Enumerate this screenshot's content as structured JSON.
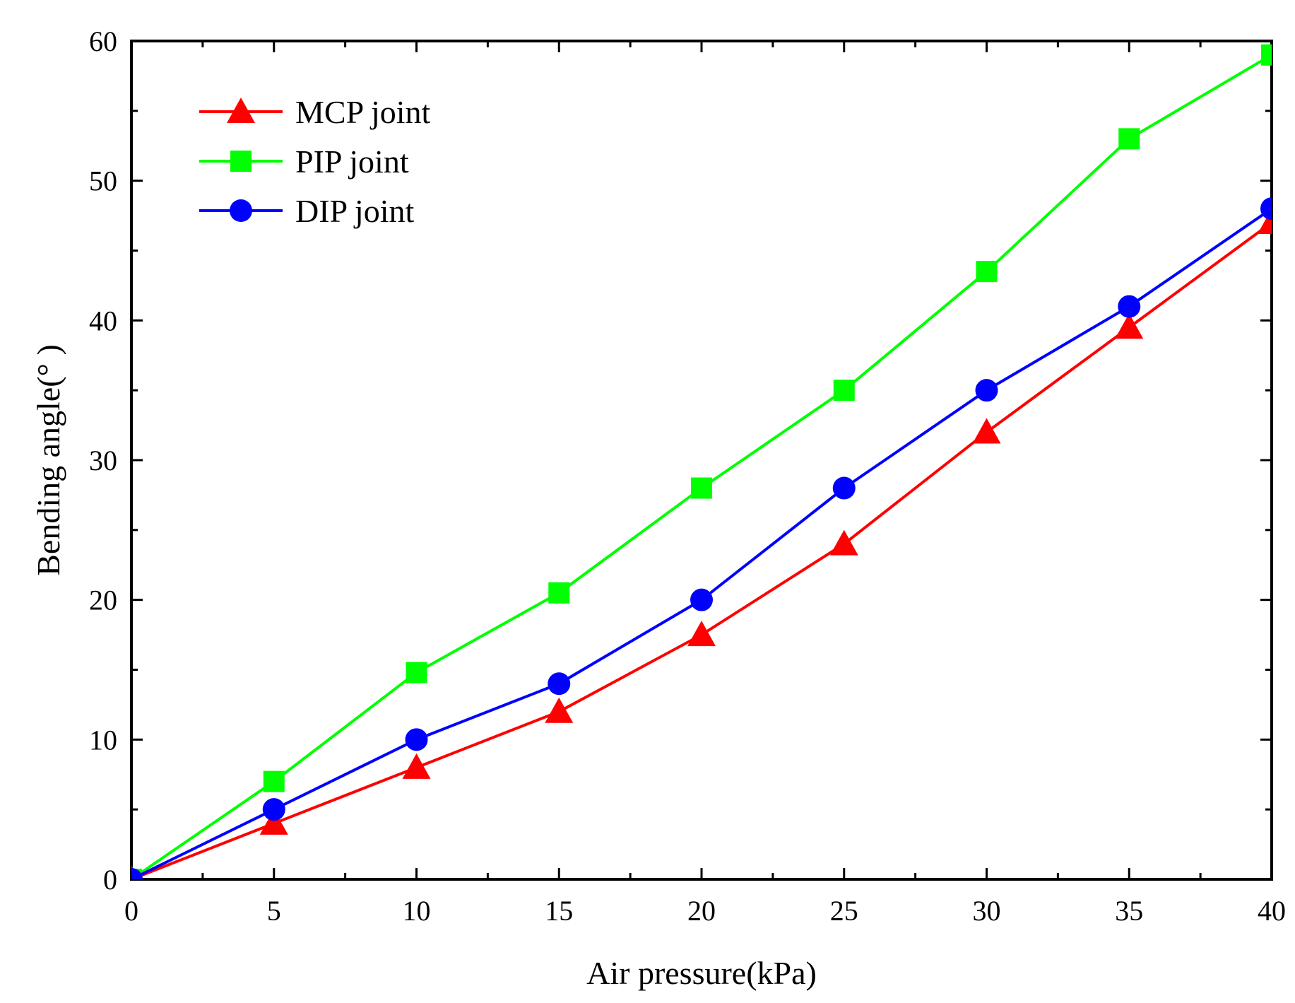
{
  "chart_data": {
    "type": "line",
    "title": "",
    "xlabel": "Air pressure(kPa)",
    "ylabel": "Bending angle(°  )",
    "xlim": [
      0,
      40
    ],
    "ylim": [
      0,
      60
    ],
    "x_ticks": [
      "0",
      "5",
      "10",
      "15",
      "20",
      "25",
      "30",
      "35",
      "40"
    ],
    "y_ticks": [
      "0",
      "10",
      "20",
      "30",
      "40",
      "50",
      "60"
    ],
    "grid": false,
    "legend_position": "top-left",
    "x": [
      0,
      5,
      10,
      15,
      20,
      25,
      30,
      35,
      40
    ],
    "series": [
      {
        "name": "MCP joint",
        "color": "#ff0000",
        "marker": "triangle",
        "values": [
          0,
          4,
          8,
          12,
          17.5,
          24,
          32,
          39.5,
          47
        ]
      },
      {
        "name": "PIP joint",
        "color": "#00ff00",
        "marker": "square",
        "values": [
          0,
          7,
          14.8,
          20.5,
          28,
          35,
          43.5,
          53,
          59
        ]
      },
      {
        "name": "DIP joint",
        "color": "#0000ff",
        "marker": "circle",
        "values": [
          0,
          5,
          10,
          14,
          20,
          28,
          35,
          41,
          48
        ]
      }
    ]
  }
}
